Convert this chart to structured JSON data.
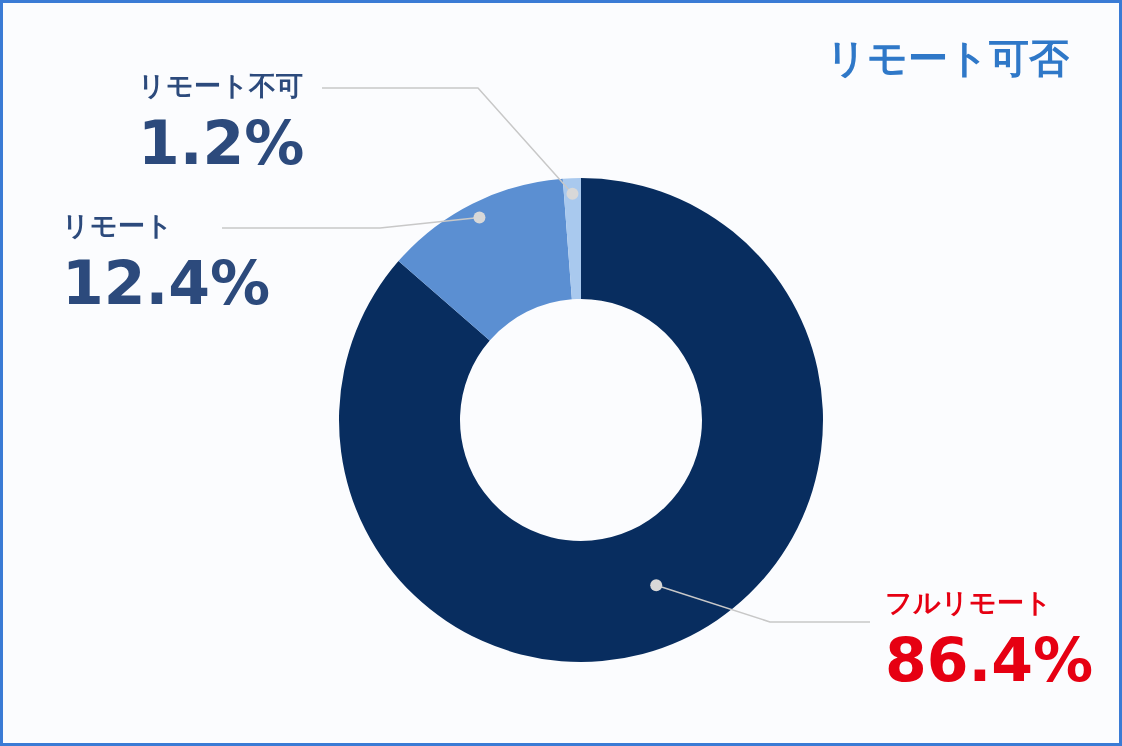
{
  "chart_data": {
    "type": "donut",
    "title": "リモート可否",
    "categories": [
      "フルリモート",
      "リモート",
      "リモート不可"
    ],
    "values": [
      86.4,
      12.4,
      1.2
    ],
    "colors": [
      "#082d5f",
      "#5b8fd2",
      "#a9c9ee"
    ],
    "value_labels": [
      "86.4%",
      "12.4%",
      "1.2%"
    ],
    "legend": false
  }
}
